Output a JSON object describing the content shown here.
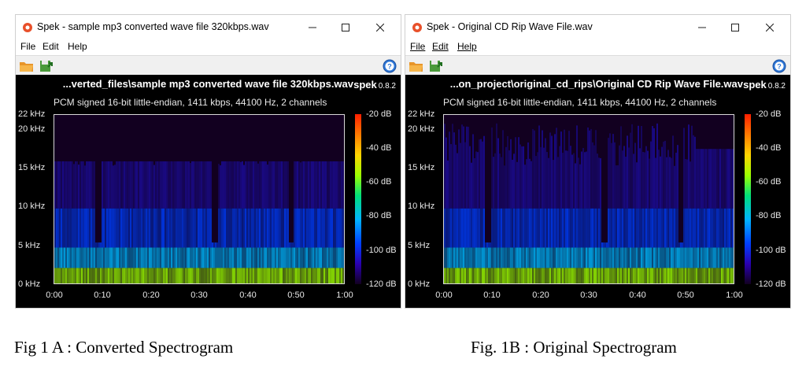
{
  "windows": [
    {
      "title": "Spek - sample mp3 converted wave file 320kbps.wav",
      "menu": [
        {
          "label": "File",
          "underline": false
        },
        {
          "label": "Edit",
          "underline": false
        },
        {
          "label": "Help",
          "underline": false
        }
      ],
      "path_title": "...verted_files\\sample mp3 converted wave file 320kbps.wav",
      "brand": "spek",
      "version": "0.8.2",
      "info": "PCM signed 16-bit little-endian, 1411 kbps, 44100 Hz, 2 channels",
      "freq_ticks": [
        "22 kHz",
        "20 kHz",
        "15 kHz",
        "10 kHz",
        "5 kHz",
        "0 kHz"
      ],
      "freq_values": [
        22,
        20,
        15,
        10,
        5,
        0
      ],
      "time_ticks": [
        "0:00",
        "0:10",
        "0:20",
        "0:30",
        "0:40",
        "0:50",
        "1:00"
      ],
      "db_ticks": [
        "-20 dB",
        "-40 dB",
        "-60 dB",
        "-80 dB",
        "-100 dB",
        "-120 dB"
      ],
      "lowpass_khz": 16
    },
    {
      "title": "Spek - Original CD Rip Wave File.wav",
      "menu": [
        {
          "label": "File",
          "underline": true
        },
        {
          "label": "Edit",
          "underline": true
        },
        {
          "label": "Help",
          "underline": true
        }
      ],
      "path_title": "...on_project\\original_cd_rips\\Original CD Rip Wave File.wav",
      "brand": "spek",
      "version": "0.8.2",
      "info": "PCM signed 16-bit little-endian, 1411 kbps, 44100 Hz, 2 channels",
      "freq_ticks": [
        "22 kHz",
        "20 kHz",
        "15 kHz",
        "10 kHz",
        "5 kHz",
        "0 kHz"
      ],
      "freq_values": [
        22,
        20,
        15,
        10,
        5,
        0
      ],
      "time_ticks": [
        "0:00",
        "0:10",
        "0:20",
        "0:30",
        "0:40",
        "0:50",
        "1:00"
      ],
      "db_ticks": [
        "-20 dB",
        "-40 dB",
        "-60 dB",
        "-80 dB",
        "-100 dB",
        "-120 dB"
      ],
      "lowpass_khz": 22
    }
  ],
  "captions": [
    "Fig 1 A : Converted Spectrogram",
    "Fig. 1B : Original Spectrogram"
  ],
  "icons": {
    "app": "spek-app-icon",
    "open": "folder-open-icon",
    "save": "save-icon",
    "help": "help-circle-icon"
  },
  "colors": {
    "spectrogram_low": "#120020",
    "spectrogram_mid": "#0040ff",
    "spectrogram_high": "#9cff00",
    "help_icon": "#2f78d8"
  }
}
